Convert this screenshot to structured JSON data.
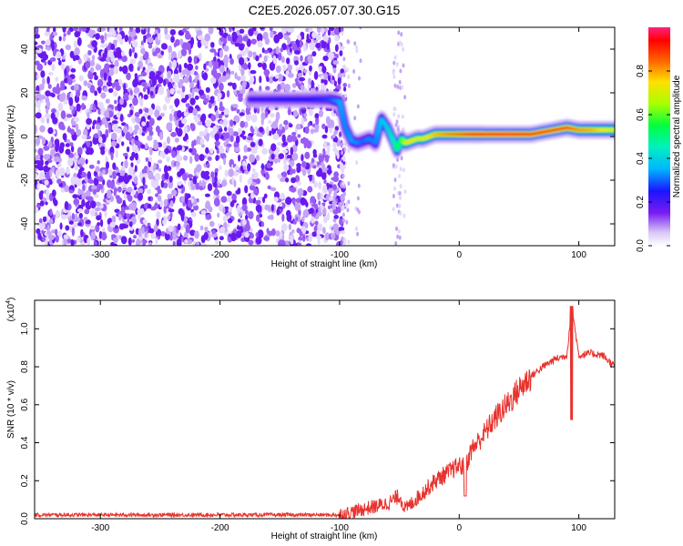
{
  "title": "C2E5.2026.057.07.30.G15",
  "chart_data": [
    {
      "type": "heatmap",
      "xlabel": "Height of straight line (km)",
      "ylabel": "Frequency (Hz)",
      "xlim": [
        -355,
        130
      ],
      "ylim": [
        -50,
        50
      ],
      "xticks": [
        -300,
        -200,
        -100,
        0,
        100
      ],
      "yticks": [
        -40,
        -20,
        0,
        20,
        40
      ],
      "colorbar": {
        "label": "Normalized spectral amplitude",
        "range": [
          0,
          1
        ],
        "ticks": [
          0.0,
          0.2,
          0.4,
          0.6,
          0.8
        ]
      },
      "ridge": {
        "x": [
          -175,
          -150,
          -125,
          -108,
          -100,
          -95,
          -90,
          -85,
          -80,
          -75,
          -70,
          -65,
          -60,
          -55,
          -52,
          -48,
          -45,
          -40,
          -35,
          -30,
          -20,
          -10,
          0,
          10,
          20,
          40,
          60,
          80,
          90,
          100,
          110,
          120,
          130
        ],
        "y": [
          17,
          17,
          17,
          17,
          16,
          4,
          -2,
          -3,
          -2,
          -1,
          -3,
          8,
          4,
          -2,
          -6,
          -1,
          -3,
          -2,
          -1,
          -1,
          1,
          1,
          1,
          1,
          1,
          1,
          1,
          3,
          4,
          3,
          3,
          3,
          3
        ],
        "amplitude": [
          0.22,
          0.24,
          0.25,
          0.28,
          0.35,
          0.32,
          0.34,
          0.33,
          0.3,
          0.33,
          0.32,
          0.38,
          0.4,
          0.45,
          0.5,
          0.55,
          0.68,
          0.75,
          0.7,
          0.72,
          0.78,
          0.82,
          0.85,
          0.9,
          0.92,
          0.95,
          0.92,
          0.9,
          0.88,
          0.82,
          0.8,
          0.75,
          0.7
        ]
      },
      "noise_region_x": [
        -355,
        -100
      ]
    },
    {
      "type": "line",
      "xlabel": "Height of straight line (km)",
      "ylabel": "SNR (10 * v/v)",
      "y_multiplier_label": "(x10",
      "y_multiplier_exp": "4",
      "xlim": [
        -355,
        130
      ],
      "ylim": [
        0,
        1.15
      ],
      "xticks": [
        -300,
        -200,
        -100,
        0,
        100
      ],
      "yticks": [
        0.0,
        0.2,
        0.4,
        0.6,
        0.8,
        1.0
      ],
      "color": "#e8322d",
      "series": [
        {
          "x": [
            -355,
            -300,
            -250,
            -200,
            -150,
            -110,
            -100,
            -80,
            -60,
            -50,
            -45,
            -40,
            -30,
            -20,
            -10,
            0,
            5,
            10,
            20,
            30,
            40,
            50,
            60,
            70,
            80,
            90,
            94,
            100,
            110,
            120,
            130
          ],
          "values": [
            0.02,
            0.02,
            0.02,
            0.02,
            0.02,
            0.02,
            0.02,
            0.05,
            0.08,
            0.12,
            0.05,
            0.08,
            0.14,
            0.2,
            0.24,
            0.28,
            0.27,
            0.36,
            0.44,
            0.53,
            0.6,
            0.68,
            0.75,
            0.8,
            0.84,
            0.86,
            1.12,
            0.86,
            0.87,
            0.86,
            0.8
          ]
        }
      ]
    }
  ]
}
